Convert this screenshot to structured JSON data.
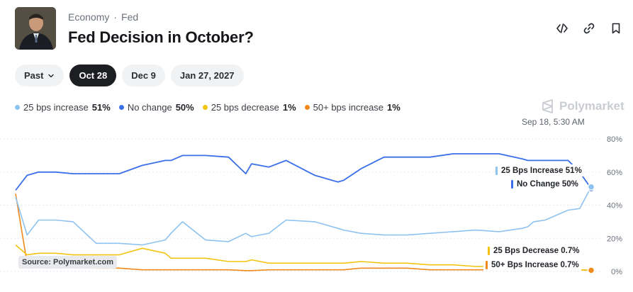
{
  "breadcrumb": {
    "category": "Economy",
    "separator": "·",
    "topic": "Fed"
  },
  "title": "Fed Decision in October?",
  "tabs": [
    {
      "label": "Past",
      "active": false,
      "icon": "chevron-down-icon"
    },
    {
      "label": "Oct 28",
      "active": true
    },
    {
      "label": "Dec 9",
      "active": false
    },
    {
      "label": "Jan 27, 2027",
      "active": false
    }
  ],
  "brand": "Polymarket",
  "timestamp": "Sep 18, 5:30 AM",
  "source_label": "Source: Polymarket.com",
  "legend": [
    {
      "name": "25 bps increase",
      "value": "51%",
      "color": "#8ec2f0"
    },
    {
      "name": "No change",
      "value": "50%",
      "color": "#3b6fe8"
    },
    {
      "name": "25 bps decrease",
      "value": "1%",
      "color": "#f2c40f"
    },
    {
      "name": "50+ bps increase",
      "value": "1%",
      "color": "#f08a1c"
    }
  ],
  "end_labels": [
    {
      "text": "25 Bps Increase 51%",
      "color": "#8ec2f0"
    },
    {
      "text": "No Change 50%",
      "color": "#3b6fe8"
    },
    {
      "text": "25 Bps Decrease 0.7%",
      "color": "#f2c40f"
    },
    {
      "text": "50+ Bps Increase 0.7%",
      "color": "#f08a1c"
    }
  ],
  "chart_data": {
    "type": "line",
    "ylim": [
      0,
      80
    ],
    "y_ticks": [
      "80%",
      "60%",
      "40%",
      "20%",
      "0%"
    ],
    "y_tick_values": [
      80,
      60,
      40,
      20,
      0
    ],
    "grid": true,
    "x": [
      0,
      2,
      4,
      7,
      10,
      14,
      18,
      22,
      26,
      27,
      29,
      33,
      37,
      40,
      41,
      44,
      47,
      52,
      56,
      57,
      60,
      64,
      68,
      72,
      76,
      80,
      84,
      88,
      89,
      90,
      92,
      96,
      98,
      100
    ],
    "series": [
      {
        "name": "No change",
        "color": "#3b6fe8",
        "values": [
          49,
          58,
          60,
          60,
          59,
          59,
          59,
          64,
          67,
          67,
          70,
          70,
          69,
          59,
          65,
          63,
          67,
          58,
          54,
          55,
          62,
          69,
          69,
          69,
          71,
          71,
          71,
          68,
          67,
          67,
          67,
          67,
          60,
          50
        ]
      },
      {
        "name": "25 bps increase",
        "color": "#8ec2f0",
        "values": [
          45,
          22,
          31,
          31,
          30,
          17,
          17,
          16,
          19,
          23,
          30,
          19,
          18,
          23,
          21,
          23,
          31,
          30,
          26,
          25,
          23,
          22,
          22,
          23,
          24,
          25,
          24,
          26,
          27,
          30,
          31,
          37,
          38,
          51
        ]
      },
      {
        "name": "25 bps decrease",
        "color": "#f2c40f",
        "values": [
          16,
          10,
          11,
          11,
          10,
          10,
          10,
          14,
          11,
          8,
          8,
          8,
          6,
          6,
          7,
          5,
          5,
          5,
          5,
          5,
          6,
          5,
          5,
          4,
          4,
          3,
          3,
          3,
          3,
          2,
          2,
          1,
          1,
          0.7
        ]
      },
      {
        "name": "50+ bps increase",
        "color": "#f08a1c",
        "values": [
          47,
          5,
          4,
          4,
          3,
          2,
          2,
          1,
          1,
          1,
          1,
          1,
          1,
          0.5,
          0.5,
          1,
          1,
          1,
          1,
          1,
          2,
          2,
          2,
          1,
          1,
          1,
          1,
          1,
          1,
          1,
          1,
          1,
          1,
          0.7
        ]
      }
    ]
  }
}
